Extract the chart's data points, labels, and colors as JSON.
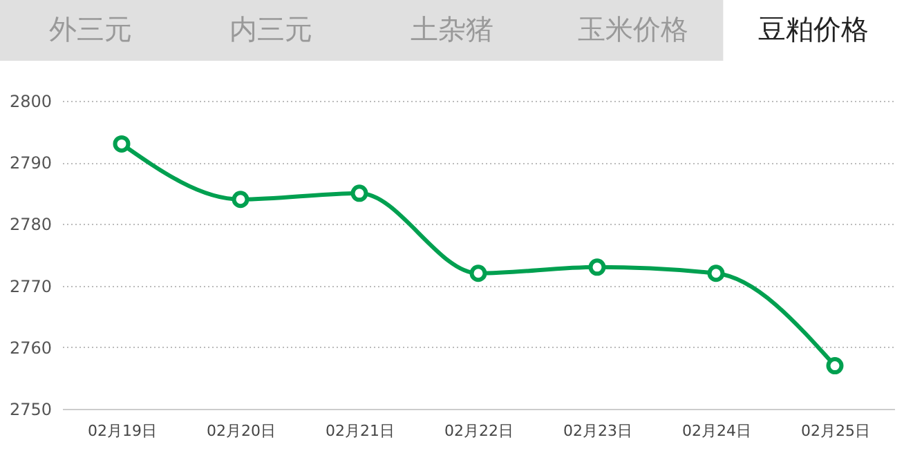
{
  "chart_data": {
    "type": "line",
    "title": "豆粕价格",
    "annotations": [
      "外三元",
      "内三元",
      "土杂猪",
      "玉米价格"
    ],
    "categories": [
      "02月19日",
      "02月20日",
      "02月21日",
      "02月22日",
      "02月23日",
      "02月24日",
      "02月25日"
    ],
    "series": [
      {
        "color": "#00a050",
        "values": [
          2793,
          2784,
          2785,
          2772,
          2773,
          2772,
          2757
        ]
      }
    ],
    "ylim": [
      2750,
      2800
    ],
    "yticks": [
      2750,
      2760,
      2770,
      2780,
      2790,
      2800
    ],
    "grid": "y",
    "marker": "circle",
    "line_style": "solid"
  }
}
